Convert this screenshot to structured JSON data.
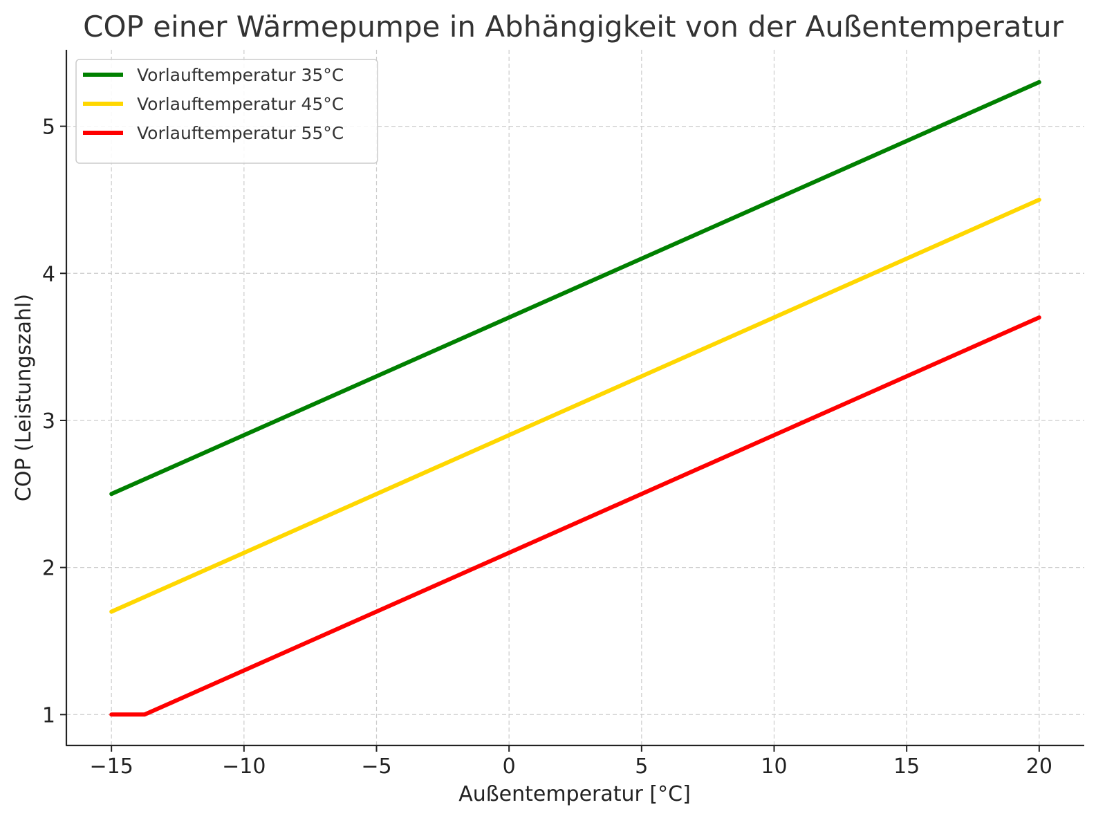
{
  "chart_data": {
    "type": "line",
    "title": "COP einer Wärmepumpe in Abhängigkeit von der Außentemperatur",
    "xlabel": "Außentemperatur [°C]",
    "ylabel": "COP (Leistungszahl)",
    "xlim": [
      -16.7,
      21.7
    ],
    "ylim": [
      0.79,
      5.52
    ],
    "xticks": [
      -15,
      -10,
      -5,
      0,
      5,
      10,
      15,
      20
    ],
    "xtick_labels": [
      "−15",
      "−10",
      "−5",
      "0",
      "5",
      "10",
      "15",
      "20"
    ],
    "yticks": [
      1,
      2,
      3,
      4,
      5
    ],
    "ytick_labels": [
      "1",
      "2",
      "3",
      "4",
      "5"
    ],
    "grid": true,
    "legend_position": "top-left",
    "series": [
      {
        "name": "Vorlauftemperatur 35°C",
        "color": "#008000",
        "x": [
          -15,
          20
        ],
        "y": [
          2.5,
          5.3
        ]
      },
      {
        "name": "Vorlauftemperatur 45°C",
        "color": "#FFD700",
        "x": [
          -15,
          20
        ],
        "y": [
          1.7,
          4.5
        ]
      },
      {
        "name": "Vorlauftemperatur 55°C",
        "color": "#FF0000",
        "x": [
          -15,
          -14,
          -13.75,
          20
        ],
        "y": [
          1.0,
          1.0,
          1.0,
          3.7
        ]
      }
    ]
  }
}
